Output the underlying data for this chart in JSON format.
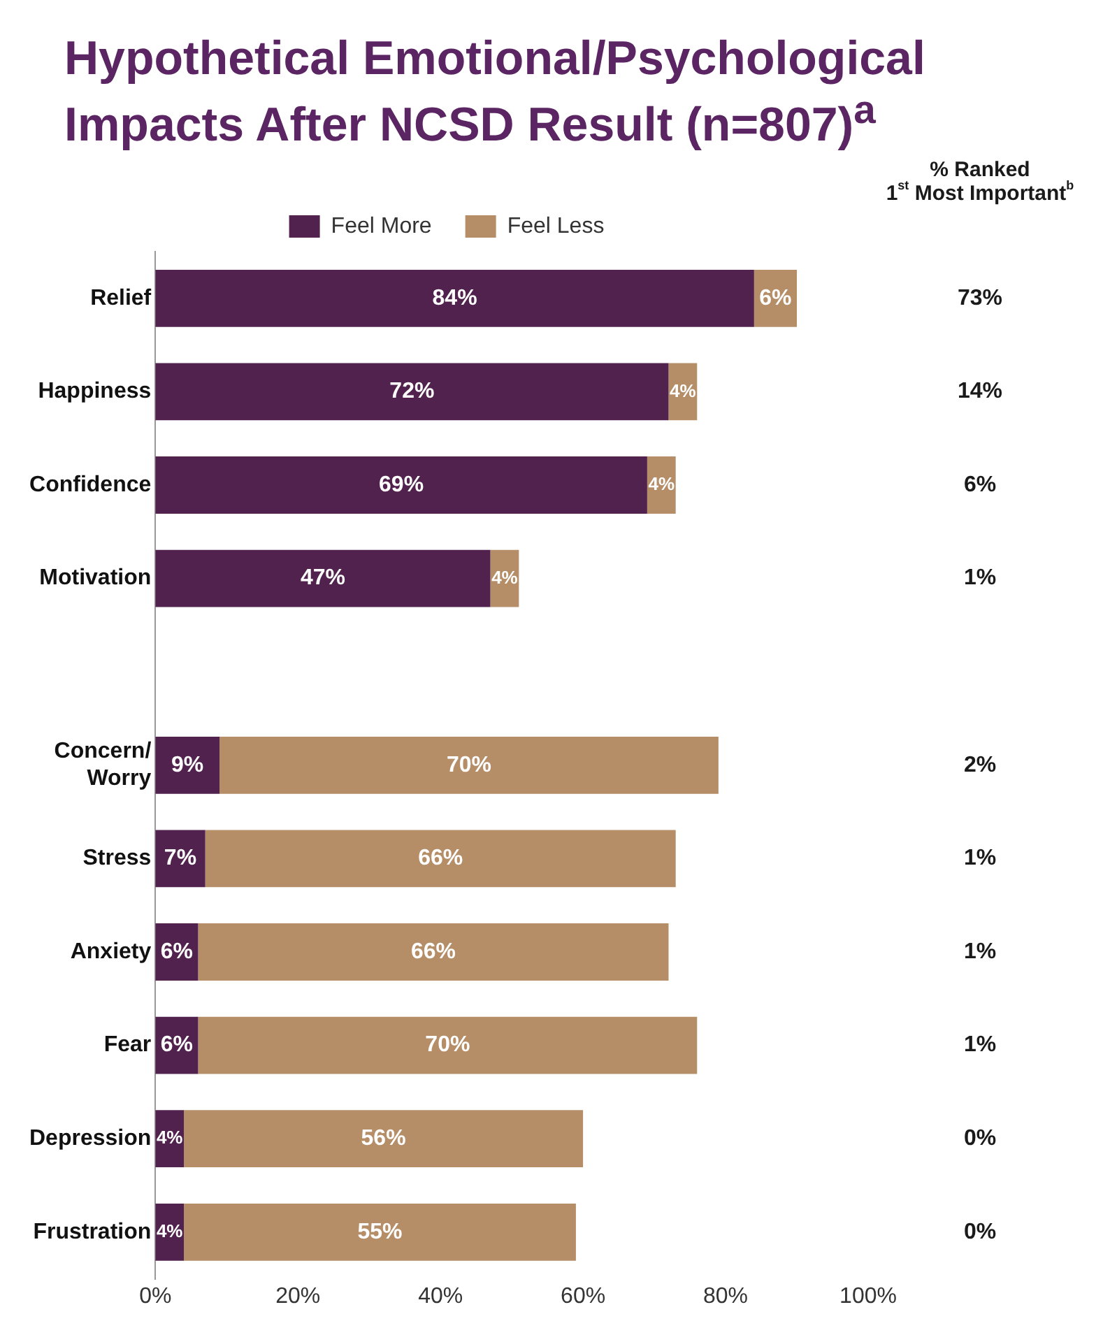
{
  "chart_data": {
    "type": "bar",
    "orientation": "horizontal",
    "stacked": true,
    "title": "Hypothetical Emotional/Psychological Impacts After NCSD Result (n=807)$^{a}$",
    "categories": [
      "Relief",
      "Happiness",
      "Confidence",
      "Motivation",
      null,
      "Concern/ Worry",
      "Stress",
      "Anxiety",
      "Fear",
      "Depression",
      "Frustration"
    ],
    "series": [
      {
        "name": "Feel More",
        "color": "#52224f",
        "values": [
          84,
          72,
          69,
          47,
          null,
          9,
          7,
          6,
          6,
          4,
          4
        ],
        "value_labels": [
          "84%",
          "72%",
          "69%",
          "47%",
          null,
          "9%",
          "7%",
          "6%",
          "6%",
          "4%",
          "4%"
        ]
      },
      {
        "name": "Feel Less",
        "color": "#b58e68",
        "values": [
          6,
          4,
          4,
          4,
          null,
          70,
          66,
          66,
          70,
          56,
          55
        ],
        "value_labels": [
          "6%",
          "4%",
          "4%",
          "4%",
          null,
          "70%",
          "66%",
          "66%",
          "70%",
          "56%",
          "55%"
        ]
      }
    ],
    "xlim": [
      0,
      100
    ],
    "xticks": [
      {
        "value": 0,
        "label": "0%"
      },
      {
        "value": 20,
        "label": "20%"
      },
      {
        "value": 40,
        "label": "40%"
      },
      {
        "value": 60,
        "label": "60%"
      },
      {
        "value": 80,
        "label": "80%"
      },
      {
        "value": 100,
        "label": "100%"
      }
    ],
    "grid": false,
    "legend": "top",
    "annotations": [
      "% Ranked\n1$^{st}$ Most Important$^{b}$",
      "73%",
      "14%",
      "6%",
      "1%",
      "2%",
      "1%",
      "1%",
      "1%",
      "0%",
      "0%"
    ]
  }
}
